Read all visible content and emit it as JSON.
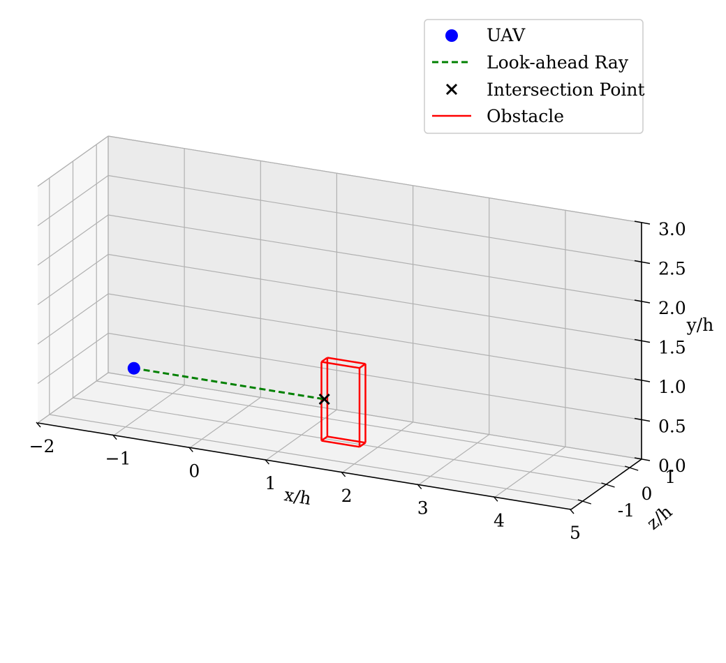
{
  "chart_data": {
    "type": "scatter",
    "projection": "3d",
    "xlabel": "x/h",
    "ylabel": "y/h",
    "zlabel": "z/h",
    "xlim": [
      -2,
      5
    ],
    "ylim": [
      0,
      3
    ],
    "zlim": [
      -1.5,
      1.5
    ],
    "x_ticks": [
      "−2",
      "−1",
      "0",
      "1",
      "2",
      "3",
      "4",
      "5"
    ],
    "x_tick_values": [
      -2,
      -1,
      0,
      1,
      2,
      3,
      4,
      5
    ],
    "y_ticks": [
      "0.0",
      "0.5",
      "1.0",
      "1.5",
      "2.0",
      "2.5",
      "3.0"
    ],
    "y_tick_values": [
      0,
      0.5,
      1,
      1.5,
      2,
      2.5,
      3
    ],
    "z_ticks": [
      "-1",
      "0",
      "1"
    ],
    "z_tick_values": [
      -1,
      0,
      1
    ],
    "grid": true,
    "legend_position": "top-right",
    "series": [
      {
        "name": "UAV",
        "marker": "circle",
        "color": "#0000ff",
        "points": [
          {
            "x": -1.2,
            "y": 0.5,
            "z": 0
          }
        ]
      },
      {
        "name": "Look-ahead Ray",
        "style": "dashed",
        "color": "#008000",
        "points": [
          {
            "x": -1.2,
            "y": 0.5,
            "z": 0
          },
          {
            "x": 1.3,
            "y": 0.5,
            "z": 0
          }
        ]
      },
      {
        "name": "Intersection Point",
        "marker": "x",
        "color": "#000000",
        "points": [
          {
            "x": 1.3,
            "y": 0.5,
            "z": 0
          }
        ]
      },
      {
        "name": "Obstacle",
        "style": "box-wireframe",
        "color": "#ff0000",
        "box": {
          "x": [
            1.3,
            1.8
          ],
          "y": [
            0,
            1.0
          ],
          "z": [
            -0.125,
            0.125
          ]
        }
      }
    ]
  }
}
